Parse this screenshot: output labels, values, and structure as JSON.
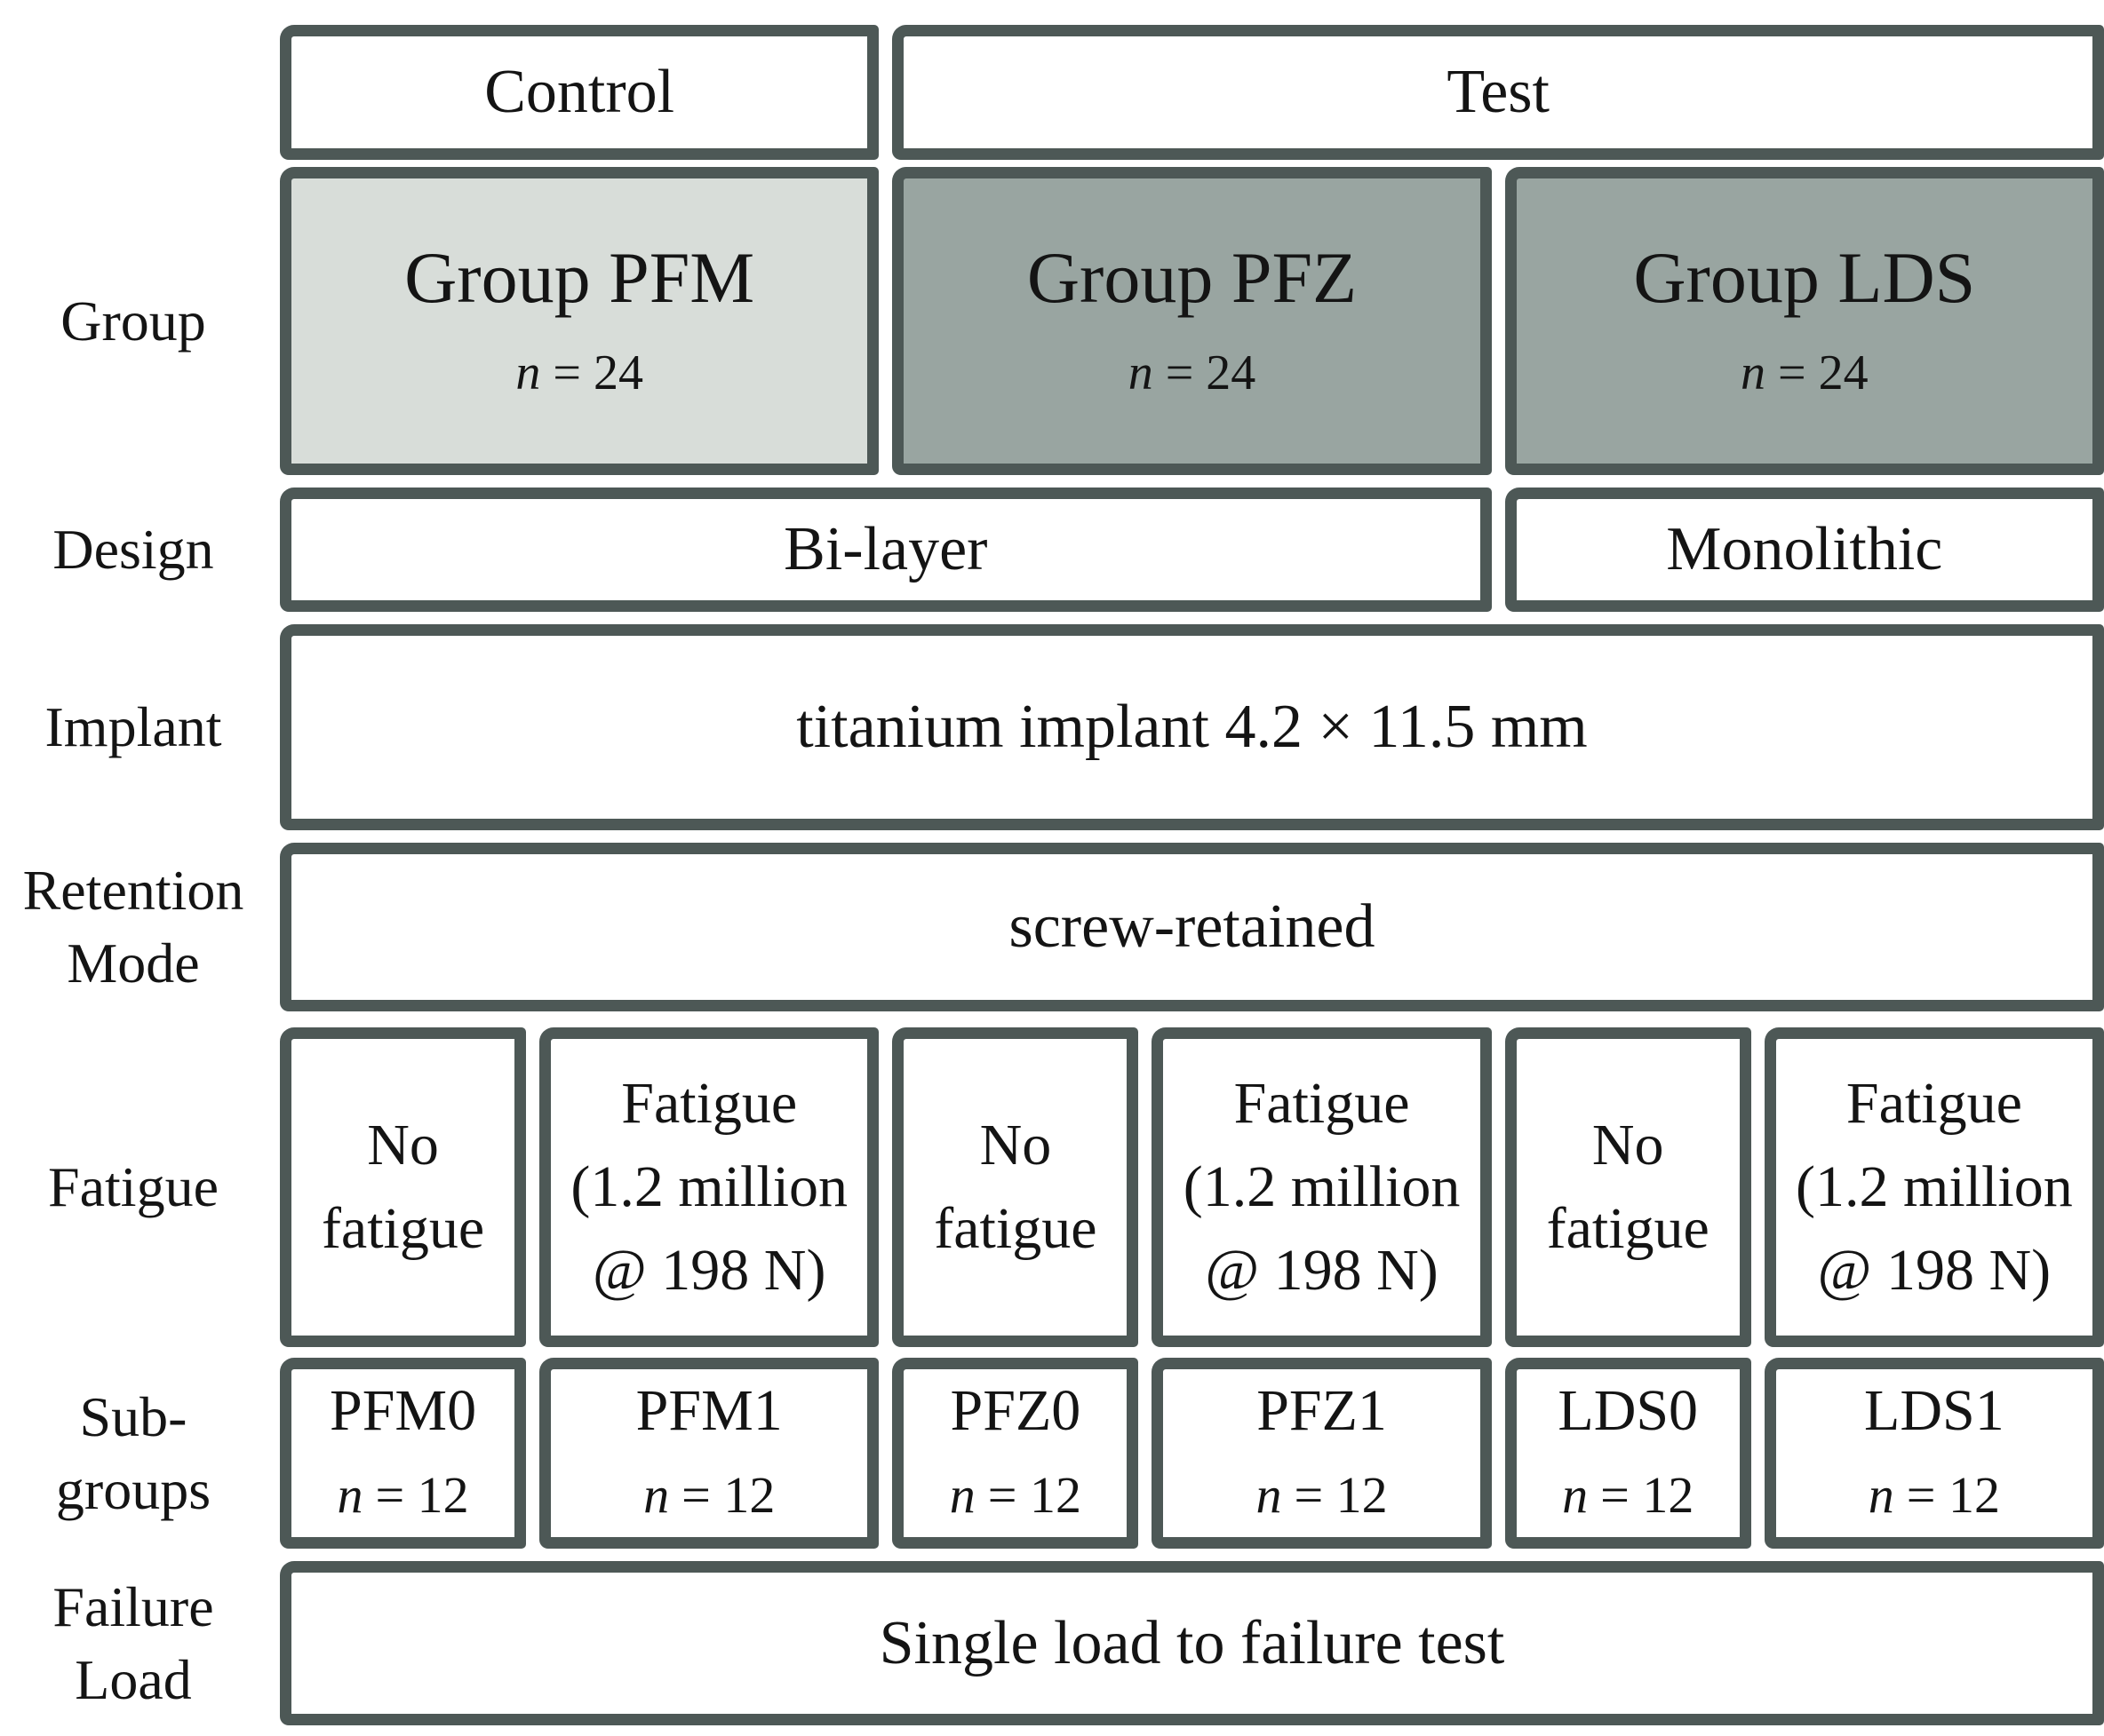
{
  "header": {
    "control": "Control",
    "test": "Test"
  },
  "group_row": {
    "label": "Group",
    "boxes": [
      {
        "title": "Group PFM",
        "n": "n",
        "n_eq": "= 24"
      },
      {
        "title": "Group PFZ",
        "n": "n",
        "n_eq": "= 24"
      },
      {
        "title": "Group LDS",
        "n": "n",
        "n_eq": "= 24"
      }
    ]
  },
  "design_row": {
    "label": "Design",
    "bilayer": "Bi-layer",
    "monolithic": "Monolithic"
  },
  "implant_row": {
    "label": "Implant",
    "value": "titanium implant 4.2 × 11.5 mm"
  },
  "retention_row": {
    "label_1": "Retention",
    "label_2": "Mode",
    "value": "screw-retained"
  },
  "fatigue_row": {
    "label": "Fatigue",
    "boxes": [
      {
        "lines": [
          "No",
          "fatigue"
        ]
      },
      {
        "lines": [
          "Fatigue",
          "(1.2 million",
          "@ 198 N)"
        ]
      },
      {
        "lines": [
          "No",
          "fatigue"
        ]
      },
      {
        "lines": [
          "Fatigue",
          "(1.2 million",
          "@ 198 N)"
        ]
      },
      {
        "lines": [
          "No",
          "fatigue"
        ]
      },
      {
        "lines": [
          "Fatigue",
          "(1.2 million",
          "@ 198 N)"
        ]
      }
    ]
  },
  "subgroups_row": {
    "label_1": "Sub-",
    "label_2": "groups",
    "boxes": [
      {
        "name": "PFM0",
        "n": "n",
        "n_eq": "= 12"
      },
      {
        "name": "PFM1",
        "n": "n",
        "n_eq": "= 12"
      },
      {
        "name": "PFZ0",
        "n": "n",
        "n_eq": "= 12"
      },
      {
        "name": "PFZ1",
        "n": "n",
        "n_eq": "= 12"
      },
      {
        "name": "LDS0",
        "n": "n",
        "n_eq": "= 12"
      },
      {
        "name": "LDS1",
        "n": "n",
        "n_eq": "= 12"
      }
    ]
  },
  "failure_row": {
    "label_1": "Failure",
    "label_2": "Load",
    "value": "Single load to failure test"
  },
  "colors": {
    "border": "#4d5856",
    "control_group_fill": "#d8ddd9",
    "test_group_fill": "#99a5a1",
    "box_fill": "#ffffff",
    "text": "#141414"
  }
}
